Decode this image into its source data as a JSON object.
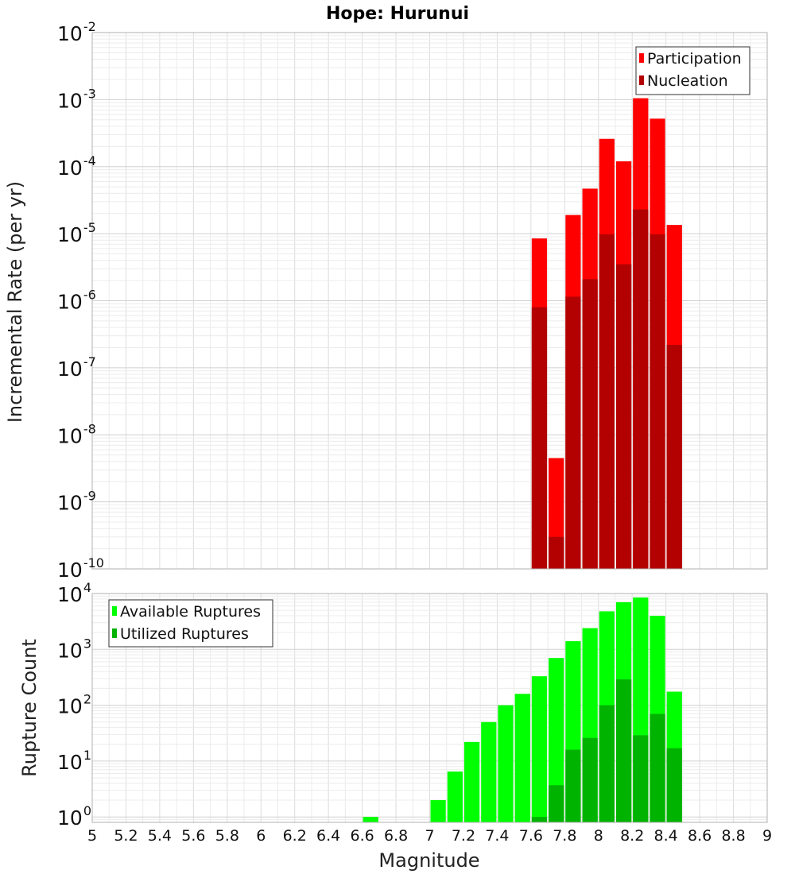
{
  "title": "Hope: Hurunui",
  "xlabel": "Magnitude",
  "chart_data": [
    {
      "type": "bar",
      "scale": "log",
      "ylabel": "Incremental Rate (per yr)",
      "ylim": [
        1e-10,
        0.01
      ],
      "ytick_exponents": [
        "-2",
        "-3",
        "-4",
        "-5",
        "-6",
        "-7",
        "-8",
        "-9",
        "-10"
      ],
      "ytick_base": "10",
      "xlim": [
        5,
        9
      ],
      "legend": {
        "position": "top-right",
        "entries": [
          "Participation",
          "Nucleation"
        ]
      },
      "series": [
        {
          "name": "Participation",
          "color": "#ff0000",
          "x": [
            7.65,
            7.75,
            7.85,
            7.95,
            8.05,
            8.15,
            8.25,
            8.35,
            8.45
          ],
          "values": [
            8.5e-06,
            4.5e-09,
            1.9e-05,
            4.7e-05,
            0.00026,
            0.00012,
            0.00105,
            0.00052,
            1.35e-05
          ]
        },
        {
          "name": "Nucleation",
          "color": "#b30000",
          "x": [
            7.65,
            7.75,
            7.85,
            7.95,
            8.05,
            8.15,
            8.25,
            8.35,
            8.45
          ],
          "values": [
            8e-07,
            3e-10,
            1.15e-06,
            2.1e-06,
            9.8e-06,
            3.5e-06,
            2.3e-05,
            9.8e-06,
            2.2e-07
          ]
        }
      ]
    },
    {
      "type": "bar",
      "scale": "log",
      "ylabel": "Rupture Count",
      "ylim": [
        0.8,
        10000
      ],
      "ytick_exponents": [
        "4",
        "3",
        "2",
        "1",
        "0"
      ],
      "ytick_base": "10",
      "xlim": [
        5,
        9
      ],
      "legend": {
        "position": "top-left",
        "entries": [
          "Available Ruptures",
          "Utilized Ruptures"
        ]
      },
      "series": [
        {
          "name": "Available Ruptures",
          "color": "#00ff00",
          "x": [
            6.65,
            7.05,
            7.15,
            7.25,
            7.35,
            7.45,
            7.55,
            7.65,
            7.75,
            7.85,
            7.95,
            8.05,
            8.15,
            8.25,
            8.35,
            8.45
          ],
          "values": [
            1,
            2,
            6.5,
            22,
            50,
            100,
            160,
            330,
            700,
            1400,
            2400,
            4800,
            7000,
            8500,
            4000,
            175
          ]
        },
        {
          "name": "Utilized Ruptures",
          "color": "#00b300",
          "x": [
            7.65,
            7.75,
            7.85,
            7.95,
            8.05,
            8.15,
            8.25,
            8.35,
            8.45
          ],
          "values": [
            1,
            3.7,
            16,
            26,
            100,
            290,
            29,
            70,
            17
          ]
        }
      ]
    }
  ],
  "xticks": [
    "5",
    "5.2",
    "5.4",
    "5.6",
    "5.8",
    "6",
    "6.2",
    "6.4",
    "6.6",
    "6.8",
    "7",
    "7.2",
    "7.4",
    "7.6",
    "7.8",
    "8",
    "8.2",
    "8.4",
    "8.6",
    "8.8",
    "9"
  ]
}
